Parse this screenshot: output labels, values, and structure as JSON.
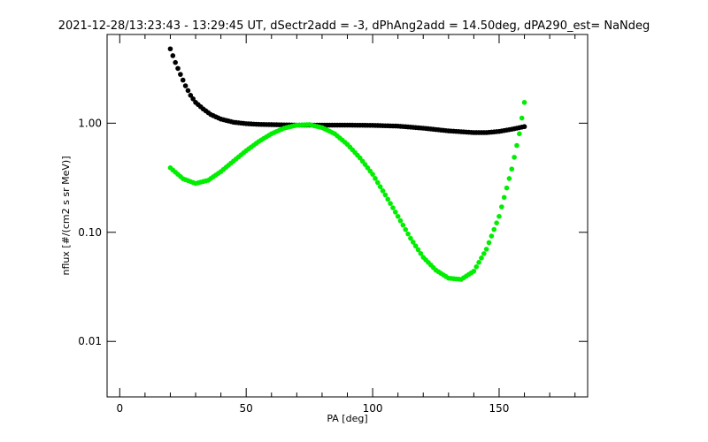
{
  "chart_data": {
    "type": "scatter",
    "title": "2021-12-28/13:23:43 - 13:29:45 UT, dSectr2add = -3, dPhAng2add = 14.50deg, dPA290_est=    NaNdeg",
    "xlabel": "PA [deg]",
    "ylabel": "nflux [#/(cm2 s sr MeV)]",
    "xlim": [
      -5,
      185
    ],
    "ylim": [
      0.0031,
      6.5
    ],
    "yscale": "log",
    "grid": false,
    "x_ticks": [
      {
        "value": 0,
        "label": "0"
      },
      {
        "value": 50,
        "label": "50"
      },
      {
        "value": 100,
        "label": "100"
      },
      {
        "value": 150,
        "label": "150"
      }
    ],
    "y_ticks": [
      {
        "value": 0.01,
        "label": "0.01"
      },
      {
        "value": 0.1,
        "label": "0.10"
      },
      {
        "value": 1,
        "label": "1.00"
      }
    ],
    "series": [
      {
        "color": "#000000",
        "points": [
          [
            20,
            4.8
          ],
          [
            22,
            3.6
          ],
          [
            24,
            2.8
          ],
          [
            26,
            2.2
          ],
          [
            28,
            1.8
          ],
          [
            30,
            1.55
          ],
          [
            33,
            1.35
          ],
          [
            36,
            1.2
          ],
          [
            40,
            1.09
          ],
          [
            45,
            1.02
          ],
          [
            50,
            0.99
          ],
          [
            55,
            0.975
          ],
          [
            60,
            0.97
          ],
          [
            70,
            0.96
          ],
          [
            80,
            0.96
          ],
          [
            90,
            0.96
          ],
          [
            100,
            0.955
          ],
          [
            110,
            0.94
          ],
          [
            120,
            0.9
          ],
          [
            130,
            0.85
          ],
          [
            140,
            0.82
          ],
          [
            145,
            0.82
          ],
          [
            150,
            0.84
          ],
          [
            155,
            0.88
          ],
          [
            160,
            0.93
          ]
        ]
      },
      {
        "color": "#00ee00",
        "points": [
          [
            20,
            0.39
          ],
          [
            25,
            0.31
          ],
          [
            30,
            0.28
          ],
          [
            35,
            0.3
          ],
          [
            40,
            0.36
          ],
          [
            45,
            0.45
          ],
          [
            50,
            0.56
          ],
          [
            55,
            0.68
          ],
          [
            60,
            0.8
          ],
          [
            65,
            0.9
          ],
          [
            70,
            0.96
          ],
          [
            75,
            0.97
          ],
          [
            80,
            0.91
          ],
          [
            85,
            0.8
          ],
          [
            90,
            0.64
          ],
          [
            95,
            0.48
          ],
          [
            100,
            0.34
          ],
          [
            105,
            0.22
          ],
          [
            110,
            0.14
          ],
          [
            115,
            0.088
          ],
          [
            120,
            0.059
          ],
          [
            125,
            0.045
          ],
          [
            130,
            0.038
          ],
          [
            135,
            0.037
          ],
          [
            140,
            0.044
          ],
          [
            145,
            0.07
          ],
          [
            150,
            0.14
          ],
          [
            155,
            0.38
          ],
          [
            158,
            0.8
          ],
          [
            160,
            1.55
          ]
        ]
      }
    ]
  }
}
